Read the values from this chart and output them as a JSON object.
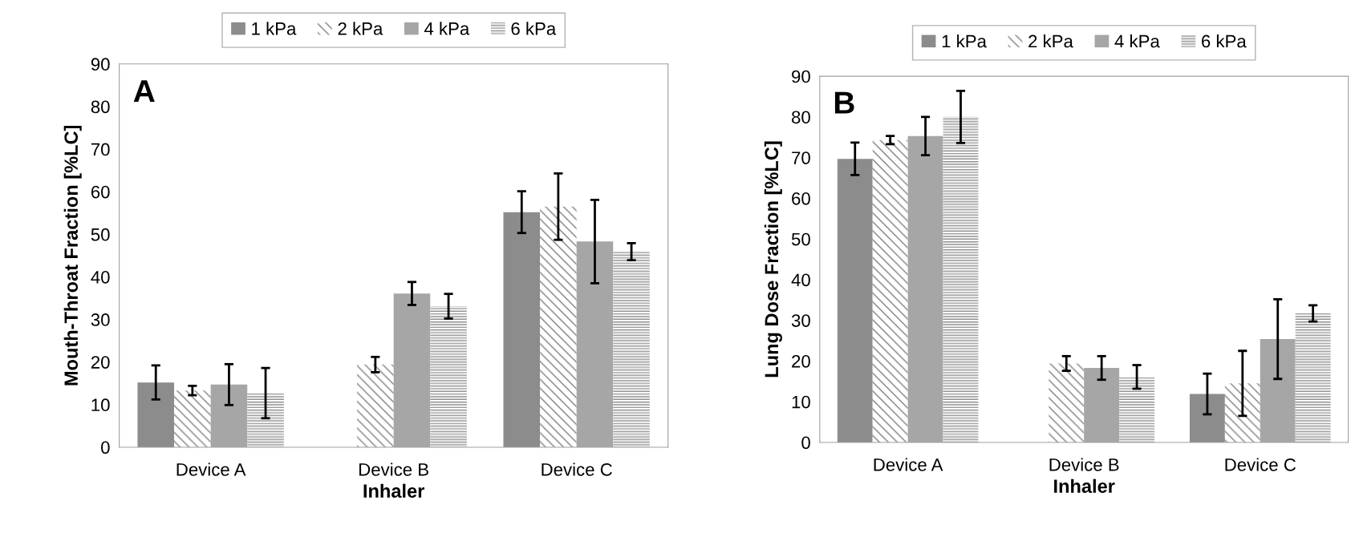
{
  "chart_data": [
    {
      "type": "bar",
      "annotations": [
        "A"
      ],
      "xlabel": "Inhaler",
      "ylabel": "Mouth-Throat Fraction [%LC]",
      "categories": [
        "Device A",
        "Device B",
        "Device C"
      ],
      "ylim": [
        0,
        90
      ],
      "yticks": [
        0,
        10,
        20,
        30,
        40,
        50,
        60,
        70,
        80,
        90
      ],
      "grid": false,
      "legend": "top",
      "series": [
        {
          "name": "1 kPa",
          "color": "#8c8c8c",
          "values": [
            15.2,
            null,
            55.2
          ],
          "errors": [
            4,
            null,
            4.9
          ]
        },
        {
          "name": "2 kPa",
          "color": "#7f7f7f",
          "values": [
            13.3,
            19.4,
            56.5
          ],
          "errors": [
            1.1,
            1.8,
            7.8
          ]
        },
        {
          "name": "4 kPa",
          "color": "#a6a6a6",
          "values": [
            14.7,
            36.1,
            48.3
          ],
          "errors": [
            4.8,
            2.7,
            9.8
          ]
        },
        {
          "name": "6 kPa",
          "color": "#8f8f8f",
          "values": [
            12.7,
            33.1,
            45.9
          ],
          "errors": [
            5.9,
            2.9,
            2
          ]
        }
      ]
    },
    {
      "type": "bar",
      "annotations": [
        "B"
      ],
      "xlabel": "Inhaler",
      "ylabel": "Lung Dose Fraction [%LC]",
      "categories": [
        "Device A",
        "Device B",
        "Device C"
      ],
      "ylim": [
        0,
        90
      ],
      "yticks": [
        0,
        10,
        20,
        30,
        40,
        50,
        60,
        70,
        80,
        90
      ],
      "grid": false,
      "legend": "top",
      "series": [
        {
          "name": "1 kPa",
          "color": "#8c8c8c",
          "values": [
            69.7,
            null,
            11.9
          ],
          "errors": [
            4,
            null,
            5
          ]
        },
        {
          "name": "2 kPa",
          "color": "#7f7f7f",
          "values": [
            74.3,
            19.4,
            14.5
          ],
          "errors": [
            1,
            1.8,
            8
          ]
        },
        {
          "name": "4 kPa",
          "color": "#a6a6a6",
          "values": [
            75.3,
            18.3,
            25.4
          ],
          "errors": [
            4.7,
            2.9,
            9.8
          ]
        },
        {
          "name": "6 kPa",
          "color": "#8f8f8f",
          "values": [
            80.0,
            16.1,
            31.7
          ],
          "errors": [
            6.4,
            2.9,
            2
          ]
        }
      ]
    }
  ]
}
